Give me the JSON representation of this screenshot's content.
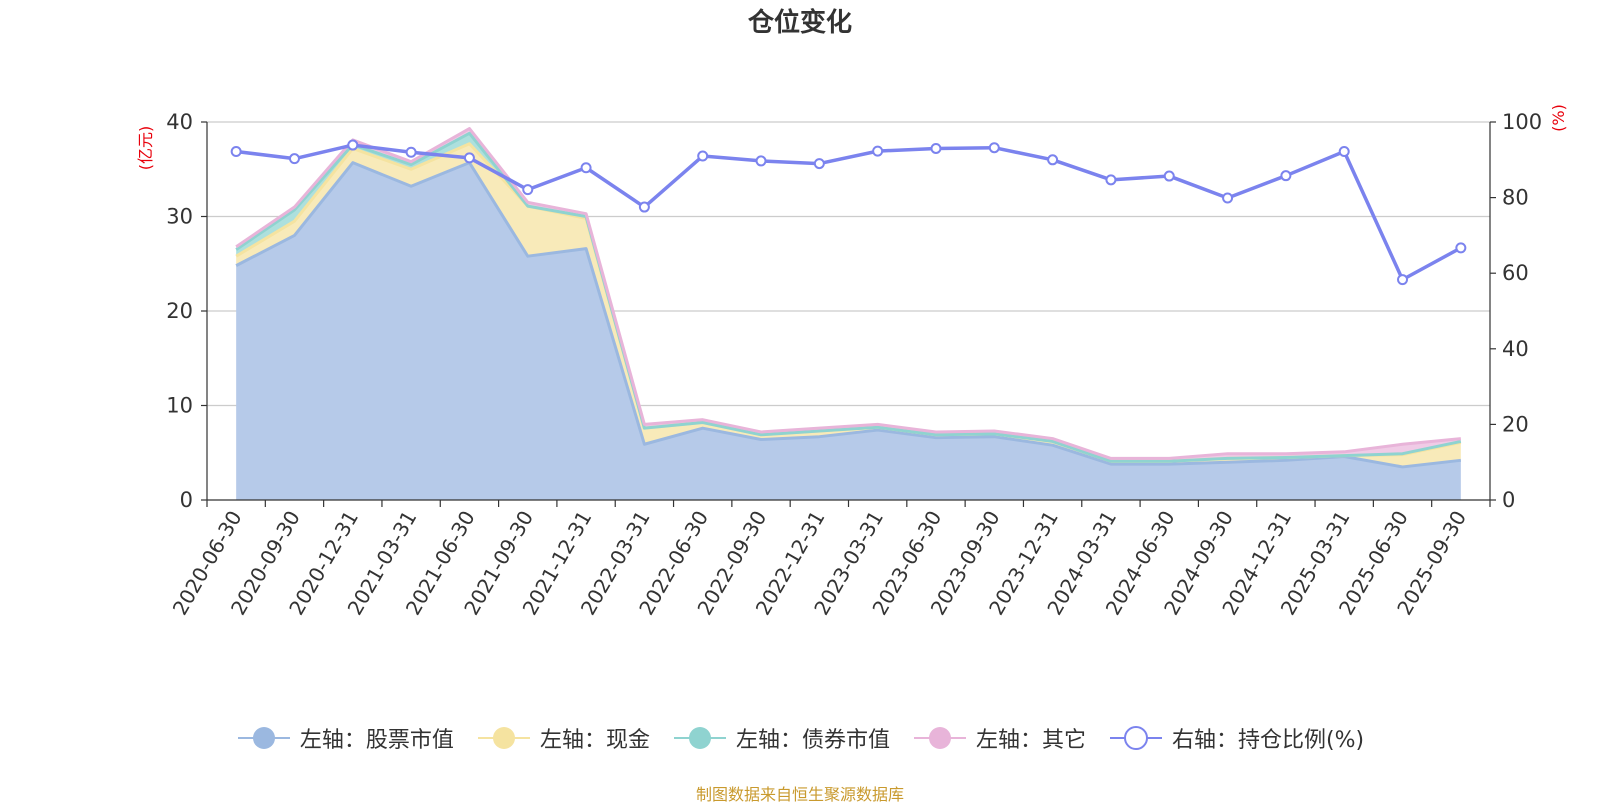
{
  "title": "仓位变化",
  "source_note": "制图数据来自恒生聚源数据库",
  "chart_data": {
    "type": "area",
    "title": "仓位变化",
    "categories": [
      "2020-06-30",
      "2020-09-30",
      "2020-12-31",
      "2021-03-31",
      "2021-06-30",
      "2021-09-30",
      "2021-12-31",
      "2022-03-31",
      "2022-06-30",
      "2022-09-30",
      "2022-12-31",
      "2023-03-31",
      "2023-06-30",
      "2023-09-30",
      "2023-12-31",
      "2024-03-31",
      "2024-06-30",
      "2024-09-30",
      "2024-12-31",
      "2025-03-31",
      "2025-06-30",
      "2025-09-30"
    ],
    "left_axis": {
      "unit": "(亿元)",
      "ylim": [
        0,
        40
      ],
      "ticks": [
        0,
        10,
        20,
        30,
        40
      ]
    },
    "right_axis": {
      "unit": "(%)",
      "ylim": [
        0,
        100
      ],
      "ticks": [
        0,
        20,
        40,
        60,
        80,
        100
      ]
    },
    "grid": true,
    "legend_position": "bottom",
    "series": [
      {
        "name": "左轴：股票市值",
        "axis": "left",
        "stack": true,
        "color": "#9bb8e0",
        "fill": "#b6cae9",
        "values": [
          24.8,
          28.0,
          35.7,
          33.2,
          35.7,
          25.8,
          26.6,
          5.9,
          7.6,
          6.4,
          6.7,
          7.4,
          6.6,
          6.7,
          5.8,
          3.8,
          3.8,
          4.0,
          4.2,
          4.6,
          3.5,
          4.2
        ]
      },
      {
        "name": "左轴：现金",
        "axis": "left",
        "stack": true,
        "color": "#f5e3a0",
        "fill": "#f8eab9",
        "values": [
          1.0,
          1.5,
          1.5,
          1.8,
          2.0,
          5.3,
          3.2,
          1.7,
          0.6,
          0.5,
          0.6,
          0.3,
          0.3,
          0.3,
          0.4,
          0.3,
          0.3,
          0.4,
          0.3,
          0.1,
          1.3,
          1.9
        ]
      },
      {
        "name": "左轴：债券市值",
        "axis": "left",
        "stack": true,
        "color": "#8fd3d0",
        "fill": "#ade0dd",
        "values": [
          0.7,
          1.2,
          0.4,
          0.5,
          1.1,
          0.0,
          0.2,
          0.0,
          0.0,
          0.0,
          0.0,
          0.0,
          0.0,
          0.0,
          0.0,
          0.0,
          0.0,
          0.0,
          0.0,
          0.0,
          0.1,
          0.1
        ]
      },
      {
        "name": "左轴：其它",
        "axis": "left",
        "stack": true,
        "color": "#e8b4d9",
        "fill": "#f0cbe6",
        "values": [
          0.3,
          0.3,
          0.5,
          0.3,
          0.5,
          0.4,
          0.3,
          0.4,
          0.3,
          0.3,
          0.3,
          0.3,
          0.3,
          0.3,
          0.3,
          0.3,
          0.3,
          0.5,
          0.4,
          0.4,
          1.0,
          0.3
        ]
      },
      {
        "name": "右轴：持仓比例(%)",
        "axis": "right",
        "stack": false,
        "color": "#7b83ee",
        "values": [
          92.2,
          90.3,
          93.9,
          92.0,
          90.5,
          82.1,
          87.9,
          77.5,
          91.0,
          89.7,
          89.0,
          92.3,
          93.0,
          93.2,
          90.0,
          84.7,
          85.7,
          79.9,
          85.8,
          92.2,
          58.3,
          66.7
        ]
      }
    ]
  }
}
